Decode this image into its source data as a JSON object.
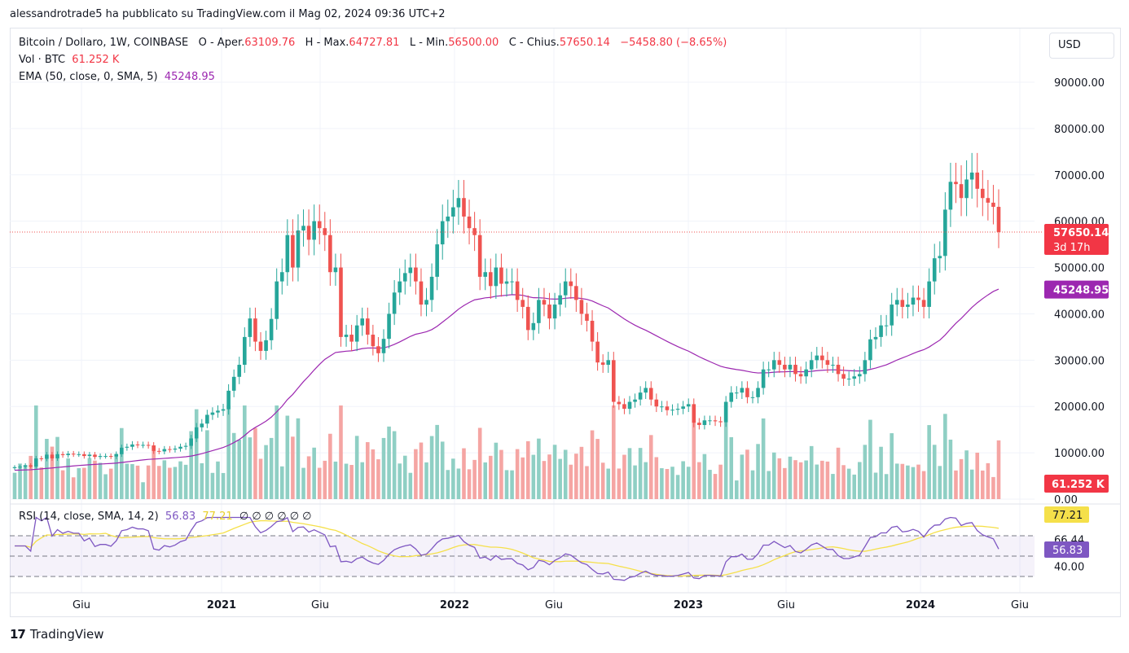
{
  "header": {
    "title": "alessandrotrade5 ha pubblicato su TradingView.com il Mag 02, 2024 09:36 UTC+2"
  },
  "legend": {
    "symbol": "Bitcoin / Dollaro, 1W, COINBASE",
    "o_label": "O - Aper.",
    "o_value": "63109.76",
    "h_label": "H - Max.",
    "h_value": "64727.81",
    "l_label": "L - Min.",
    "l_value": "56500.00",
    "c_label": "C - Chius.",
    "c_value": "57650.14",
    "change": "−5458.80 (−8.65%)",
    "vol_label": "Vol · BTC",
    "vol_value": "61.252 K",
    "ema_label": "EMA (50, close, 0, SMA, 5)",
    "ema_value": "45248.95",
    "rsi_label": "RSI (14, close, SMA, 14, 2)",
    "rsi_value": "56.83",
    "rsi_ma_value": "77.21",
    "rsi_extra": "∅ ∅ ∅ ∅ ∅ ∅"
  },
  "currency_button": "USD",
  "brand": {
    "name": "TradingView",
    "logo": "17"
  },
  "colors": {
    "up": "#26a69a",
    "down": "#ef5350",
    "ema": "#9c27b0",
    "rsi": "#7e57c2",
    "rsi_ma": "#f5e04a",
    "vol_up": "#8fcfc4",
    "vol_down": "#f5a5a3"
  },
  "chart_data": {
    "type": "candlestick",
    "interval": "1W",
    "price_axis": {
      "ticks": [
        "90000.00",
        "80000.00",
        "70000.00",
        "60000.00",
        "50000.00",
        "40000.00",
        "30000.00",
        "20000.00",
        "10000.00",
        "0.00"
      ],
      "range": [
        0,
        95000
      ],
      "last_price_label": "57650.14",
      "countdown_label": "3d 17h",
      "ema_label": "45248.95",
      "volume_label": "61.252 K"
    },
    "x_axis": {
      "labels": [
        "Giu",
        "2021",
        "Giu",
        "2022",
        "Giu",
        "2023",
        "Giu",
        "2024",
        "Giu"
      ]
    },
    "rsi_axis": {
      "ticks": [
        "66.44",
        "40.00"
      ],
      "labels": {
        "ma": "77.21",
        "rsi": "56.83"
      },
      "bands": [
        70,
        50,
        30
      ]
    },
    "close_series": [
      "2020-04",
      6900,
      7000,
      7300,
      7000,
      8800,
      8700,
      9600,
      8800,
      9700,
      9500,
      9800,
      9700,
      9700,
      9300,
      9600,
      9100,
      9300,
      9300,
      9200,
      9700,
      11100,
      11300,
      11800,
      11700,
      11700,
      11600,
      10400,
      10300,
      10800,
      10700,
      10900,
      11300,
      11500,
      13100,
      15500,
      16300,
      18200,
      18700,
      19100,
      19400,
      23400,
      26400,
      29000,
      35000,
      39000,
      34000,
      32000,
      34300,
      38900,
      47000,
      49000,
      57000,
      50000,
      58000,
      59000,
      56000,
      60000,
      58500,
      57000,
      49000,
      50000,
      35000,
      35500,
      34000,
      37500,
      39000,
      35500,
      33000,
      31500,
      34600,
      40000,
      44600,
      47000,
      48800,
      50000,
      47000,
      42000,
      43000,
      48000,
      55000,
      60000,
      61000,
      63000,
      65000,
      61000,
      58500,
      57000,
      48000,
      49000,
      46000,
      50000,
      46500,
      47000,
      47000,
      43000,
      41500,
      36500,
      38000,
      43000,
      42000,
      39000,
      42000,
      44000,
      47000,
      46000,
      43000,
      40000,
      38500,
      34000,
      29500,
      29000,
      30000,
      21000,
      20500,
      19500,
      21000,
      21500,
      23000,
      24000,
      21500,
      20000,
      20000,
      19200,
      19300,
      19500,
      20000,
      20500,
      16500,
      16000,
      17000,
      17000,
      16800,
      16600,
      21000,
      23000,
      23000,
      24000,
      22000,
      22000,
      24000,
      28000,
      28000,
      30000,
      29000,
      28000,
      29000,
      27000,
      26500,
      28000,
      30000,
      31000,
      30000,
      29000,
      29000,
      27000,
      26000,
      26000,
      26500,
      27000,
      30000,
      34500,
      35000,
      37500,
      37500,
      42000,
      43000,
      41500,
      42000,
      43500,
      43000,
      41500,
      47000,
      52000,
      52500,
      62500,
      68500,
      68000,
      65000,
      69000,
      70500,
      67000,
      65000,
      64000,
      63100,
      57650
    ],
    "ema_50": {
      "last": 45248.95
    },
    "volume": {
      "last": "61.252 K"
    },
    "rsi": {
      "last": 56.83,
      "ma_last": 77.21
    }
  }
}
